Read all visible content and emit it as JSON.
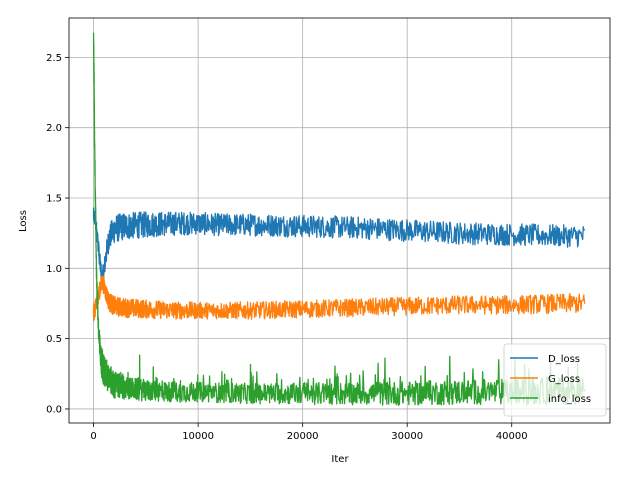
{
  "chart_data": {
    "type": "line",
    "title": "",
    "xlabel": "Iter",
    "ylabel": "Loss",
    "xlim": [
      -2350,
      49400
    ],
    "ylim": [
      -0.1,
      2.78
    ],
    "x_ticks": [
      0,
      10000,
      20000,
      30000,
      40000
    ],
    "x_tick_labels": [
      "0",
      "10000",
      "20000",
      "30000",
      "40000"
    ],
    "y_ticks": [
      0.0,
      0.5,
      1.0,
      1.5,
      2.0,
      2.5
    ],
    "y_tick_labels": [
      "0.0",
      "0.5",
      "1.0",
      "1.5",
      "2.0",
      "2.5"
    ],
    "grid": true,
    "legend_position": "bottom-right",
    "series": [
      {
        "name": "D_loss",
        "color": "#1f77b4",
        "points": [
          [
            0,
            1.38
          ],
          [
            200,
            1.33
          ],
          [
            400,
            1.2
          ],
          [
            600,
            1.05
          ],
          [
            800,
            0.92
          ],
          [
            1000,
            0.98
          ],
          [
            1200,
            1.1
          ],
          [
            1500,
            1.22
          ],
          [
            2000,
            1.28
          ],
          [
            3000,
            1.3
          ],
          [
            5000,
            1.31
          ],
          [
            8000,
            1.32
          ],
          [
            10000,
            1.32
          ],
          [
            12000,
            1.31
          ],
          [
            15000,
            1.31
          ],
          [
            20000,
            1.3
          ],
          [
            25000,
            1.29
          ],
          [
            30000,
            1.27
          ],
          [
            35000,
            1.25
          ],
          [
            40000,
            1.24
          ],
          [
            45000,
            1.23
          ],
          [
            47000,
            1.23
          ]
        ],
        "noise": [
          [
            0,
            0.05
          ],
          [
            2000,
            0.1
          ],
          [
            10000,
            0.08
          ],
          [
            47000,
            0.08
          ]
        ]
      },
      {
        "name": "G_loss",
        "color": "#ff7f0e",
        "points": [
          [
            0,
            0.68
          ],
          [
            200,
            0.72
          ],
          [
            400,
            0.78
          ],
          [
            600,
            0.85
          ],
          [
            800,
            0.9
          ],
          [
            1000,
            0.88
          ],
          [
            1200,
            0.82
          ],
          [
            1500,
            0.76
          ],
          [
            2000,
            0.73
          ],
          [
            3000,
            0.72
          ],
          [
            5000,
            0.71
          ],
          [
            8000,
            0.7
          ],
          [
            10000,
            0.7
          ],
          [
            12000,
            0.7
          ],
          [
            15000,
            0.7
          ],
          [
            20000,
            0.71
          ],
          [
            25000,
            0.72
          ],
          [
            30000,
            0.73
          ],
          [
            35000,
            0.74
          ],
          [
            40000,
            0.74
          ],
          [
            45000,
            0.75
          ],
          [
            47000,
            0.75
          ]
        ],
        "noise": [
          [
            0,
            0.06
          ],
          [
            2000,
            0.07
          ],
          [
            10000,
            0.06
          ],
          [
            47000,
            0.07
          ]
        ]
      },
      {
        "name": "info_loss",
        "color": "#2ca02c",
        "points": [
          [
            0,
            2.65
          ],
          [
            150,
            1.6
          ],
          [
            300,
            0.9
          ],
          [
            500,
            0.5
          ],
          [
            700,
            0.35
          ],
          [
            1000,
            0.28
          ],
          [
            1500,
            0.2
          ],
          [
            2000,
            0.17
          ],
          [
            3000,
            0.15
          ],
          [
            5000,
            0.13
          ],
          [
            8000,
            0.12
          ],
          [
            10000,
            0.12
          ],
          [
            15000,
            0.11
          ],
          [
            20000,
            0.11
          ],
          [
            25000,
            0.11
          ],
          [
            30000,
            0.11
          ],
          [
            35000,
            0.12
          ],
          [
            40000,
            0.12
          ],
          [
            45000,
            0.13
          ],
          [
            47000,
            0.13
          ]
        ],
        "noise": [
          [
            0,
            0.1
          ],
          [
            1000,
            0.12
          ],
          [
            3000,
            0.08
          ],
          [
            10000,
            0.07
          ],
          [
            47000,
            0.1
          ]
        ]
      }
    ]
  }
}
